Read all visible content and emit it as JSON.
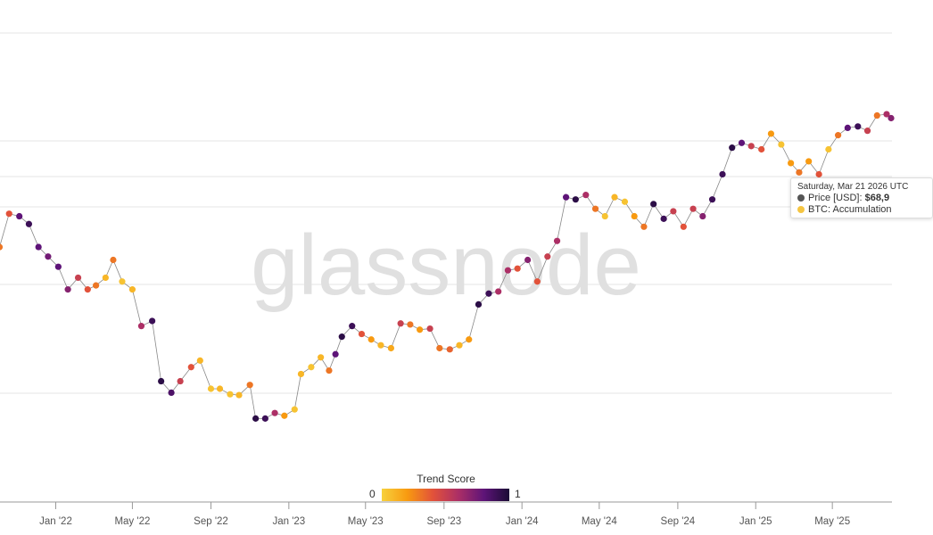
{
  "watermark": "glassnode",
  "tooltip": {
    "date": "Saturday, Mar 21 2026 UTC",
    "price_label": "Price [USD]:",
    "price_value": "$68,9",
    "series_label": "BTC: Accumulation",
    "price_dot_color": "#555555",
    "series_dot_color": "#f5c542"
  },
  "colorbar": {
    "title": "Trend Score",
    "min_label": "0",
    "max_label": "1",
    "colors": [
      "#f7d13d",
      "#f89a10",
      "#e2523a",
      "#ac2f66",
      "#5e1478",
      "#1a0b35"
    ]
  },
  "chart_data": {
    "type": "scatter",
    "title": "",
    "xlabel": "",
    "ylabel": "",
    "y_scale": "log",
    "grid": true,
    "color_by": "Trend Score",
    "x_ticks": [
      "Jan '22",
      "May '22",
      "Sep '22",
      "Jan '23",
      "May '23",
      "Sep '23",
      "Jan '24",
      "May '24",
      "Sep '24",
      "Jan '25",
      "May '25"
    ],
    "x_tick_dates": [
      "2022-01-01",
      "2022-05-01",
      "2022-09-01",
      "2023-01-01",
      "2023-05-01",
      "2023-09-01",
      "2024-01-01",
      "2024-05-01",
      "2024-09-01",
      "2025-01-01",
      "2025-05-01"
    ],
    "points": [
      [
        "2021-10-05",
        50000,
        0.3
      ],
      [
        "2021-10-20",
        62000,
        0.4
      ],
      [
        "2021-11-05",
        61000,
        0.8
      ],
      [
        "2021-11-20",
        58000,
        0.9
      ],
      [
        "2021-12-05",
        50000,
        0.8
      ],
      [
        "2021-12-20",
        47000,
        0.75
      ],
      [
        "2022-01-05",
        44000,
        0.8
      ],
      [
        "2022-01-20",
        38000,
        0.7
      ],
      [
        "2022-02-05",
        41000,
        0.5
      ],
      [
        "2022-02-20",
        38000,
        0.4
      ],
      [
        "2022-03-05",
        39000,
        0.3
      ],
      [
        "2022-03-20",
        41000,
        0.1
      ],
      [
        "2022-04-01",
        46000,
        0.3
      ],
      [
        "2022-04-15",
        40000,
        0.05
      ],
      [
        "2022-05-01",
        38000,
        0.1
      ],
      [
        "2022-05-15",
        30000,
        0.6
      ],
      [
        "2022-06-01",
        31000,
        0.9
      ],
      [
        "2022-06-15",
        21000,
        0.95
      ],
      [
        "2022-07-01",
        19500,
        0.85
      ],
      [
        "2022-07-15",
        21000,
        0.5
      ],
      [
        "2022-08-01",
        23000,
        0.4
      ],
      [
        "2022-08-15",
        24000,
        0.1
      ],
      [
        "2022-09-01",
        20000,
        0.05
      ],
      [
        "2022-09-15",
        20000,
        0.1
      ],
      [
        "2022-10-01",
        19300,
        0.05
      ],
      [
        "2022-10-15",
        19200,
        0.1
      ],
      [
        "2022-11-01",
        20500,
        0.3
      ],
      [
        "2022-11-10",
        16500,
        0.95
      ],
      [
        "2022-11-25",
        16500,
        0.9
      ],
      [
        "2022-12-10",
        17100,
        0.6
      ],
      [
        "2022-12-25",
        16800,
        0.2
      ],
      [
        "2023-01-10",
        17500,
        0.05
      ],
      [
        "2023-01-20",
        22000,
        0.1
      ],
      [
        "2023-02-05",
        23000,
        0.05
      ],
      [
        "2023-02-20",
        24500,
        0.1
      ],
      [
        "2023-03-05",
        22500,
        0.3
      ],
      [
        "2023-03-15",
        25000,
        0.8
      ],
      [
        "2023-03-25",
        28000,
        0.95
      ],
      [
        "2023-04-10",
        30000,
        0.9
      ],
      [
        "2023-04-25",
        28500,
        0.4
      ],
      [
        "2023-05-10",
        27500,
        0.2
      ],
      [
        "2023-05-25",
        26500,
        0.1
      ],
      [
        "2023-06-10",
        26000,
        0.15
      ],
      [
        "2023-06-25",
        30500,
        0.5
      ],
      [
        "2023-07-10",
        30300,
        0.3
      ],
      [
        "2023-07-25",
        29300,
        0.2
      ],
      [
        "2023-08-10",
        29500,
        0.5
      ],
      [
        "2023-08-25",
        26000,
        0.3
      ],
      [
        "2023-09-10",
        25800,
        0.35
      ],
      [
        "2023-09-25",
        26500,
        0.1
      ],
      [
        "2023-10-10",
        27500,
        0.2
      ],
      [
        "2023-10-25",
        34500,
        0.95
      ],
      [
        "2023-11-10",
        37000,
        0.9
      ],
      [
        "2023-11-25",
        37500,
        0.6
      ],
      [
        "2023-12-10",
        43000,
        0.6
      ],
      [
        "2023-12-25",
        43500,
        0.4
      ],
      [
        "2024-01-10",
        46000,
        0.7
      ],
      [
        "2024-01-25",
        40000,
        0.4
      ],
      [
        "2024-02-10",
        47000,
        0.5
      ],
      [
        "2024-02-25",
        52000,
        0.6
      ],
      [
        "2024-03-10",
        69000,
        0.8
      ],
      [
        "2024-03-25",
        68000,
        0.95
      ],
      [
        "2024-04-10",
        70000,
        0.6
      ],
      [
        "2024-04-25",
        64000,
        0.3
      ],
      [
        "2024-05-10",
        61000,
        0.05
      ],
      [
        "2024-05-25",
        69000,
        0.1
      ],
      [
        "2024-06-10",
        67000,
        0.05
      ],
      [
        "2024-06-25",
        61000,
        0.2
      ],
      [
        "2024-07-10",
        57000,
        0.3
      ],
      [
        "2024-07-25",
        66000,
        0.95
      ],
      [
        "2024-08-10",
        60000,
        0.9
      ],
      [
        "2024-08-25",
        63000,
        0.5
      ],
      [
        "2024-09-10",
        57000,
        0.4
      ],
      [
        "2024-09-25",
        64000,
        0.5
      ],
      [
        "2024-10-10",
        61000,
        0.7
      ],
      [
        "2024-10-25",
        68000,
        0.9
      ],
      [
        "2024-11-10",
        80000,
        0.9
      ],
      [
        "2024-11-25",
        95000,
        0.95
      ],
      [
        "2024-12-10",
        98000,
        0.8
      ],
      [
        "2024-12-25",
        96000,
        0.5
      ],
      [
        "2025-01-10",
        94000,
        0.4
      ],
      [
        "2025-01-25",
        104000,
        0.2
      ],
      [
        "2025-02-10",
        97000,
        0.05
      ],
      [
        "2025-02-25",
        86000,
        0.2
      ],
      [
        "2025-03-10",
        81000,
        0.3
      ],
      [
        "2025-03-25",
        87000,
        0.2
      ],
      [
        "2025-04-10",
        80000,
        0.4
      ],
      [
        "2025-04-25",
        94000,
        0.05
      ],
      [
        "2025-05-10",
        103000,
        0.3
      ],
      [
        "2025-05-25",
        108000,
        0.8
      ],
      [
        "2025-06-10",
        109000,
        0.9
      ],
      [
        "2025-06-25",
        106000,
        0.5
      ],
      [
        "2025-07-10",
        117000,
        0.3
      ],
      [
        "2025-07-25",
        118000,
        0.6
      ],
      [
        "2025-08-01",
        115000,
        0.7
      ]
    ]
  }
}
